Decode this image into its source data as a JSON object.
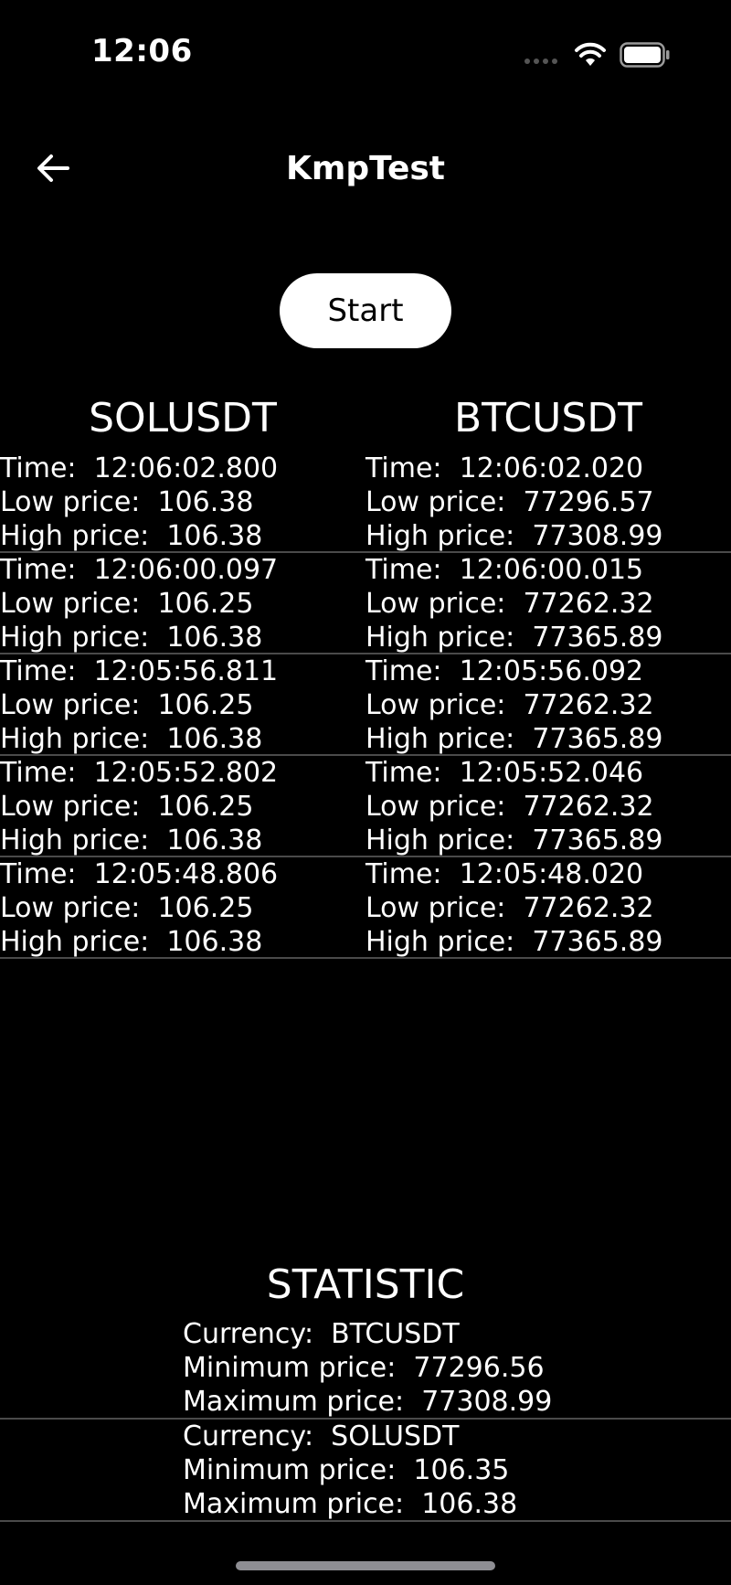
{
  "status": {
    "time": "12:06"
  },
  "nav": {
    "title": "KmpTest"
  },
  "controls": {
    "start_label": "Start"
  },
  "columns": [
    "SOLUSDT",
    "BTCUSDT"
  ],
  "labels": {
    "time": "Time:",
    "low": "Low price:",
    "high": "High price:",
    "currency": "Currency:",
    "min": "Minimum price:",
    "max": "Maximum price:"
  },
  "rows": [
    {
      "sol": {
        "time": "12:06:02.800",
        "low": "106.38",
        "high": "106.38"
      },
      "btc": {
        "time": "12:06:02.020",
        "low": "77296.57",
        "high": "77308.99"
      }
    },
    {
      "sol": {
        "time": "12:06:00.097",
        "low": "106.25",
        "high": "106.38"
      },
      "btc": {
        "time": "12:06:00.015",
        "low": "77262.32",
        "high": "77365.89"
      }
    },
    {
      "sol": {
        "time": "12:05:56.811",
        "low": "106.25",
        "high": "106.38"
      },
      "btc": {
        "time": "12:05:56.092",
        "low": "77262.32",
        "high": "77365.89"
      }
    },
    {
      "sol": {
        "time": "12:05:52.802",
        "low": "106.25",
        "high": "106.38"
      },
      "btc": {
        "time": "12:05:52.046",
        "low": "77262.32",
        "high": "77365.89"
      }
    },
    {
      "sol": {
        "time": "12:05:48.806",
        "low": "106.25",
        "high": "106.38"
      },
      "btc": {
        "time": "12:05:48.020",
        "low": "77262.32",
        "high": "77365.89"
      }
    }
  ],
  "statistic": {
    "title": "STATISTIC",
    "items": [
      {
        "currency": "BTCUSDT",
        "min": "77296.56",
        "max": "77308.99"
      },
      {
        "currency": "SOLUSDT",
        "min": "106.35",
        "max": "106.38"
      }
    ]
  }
}
